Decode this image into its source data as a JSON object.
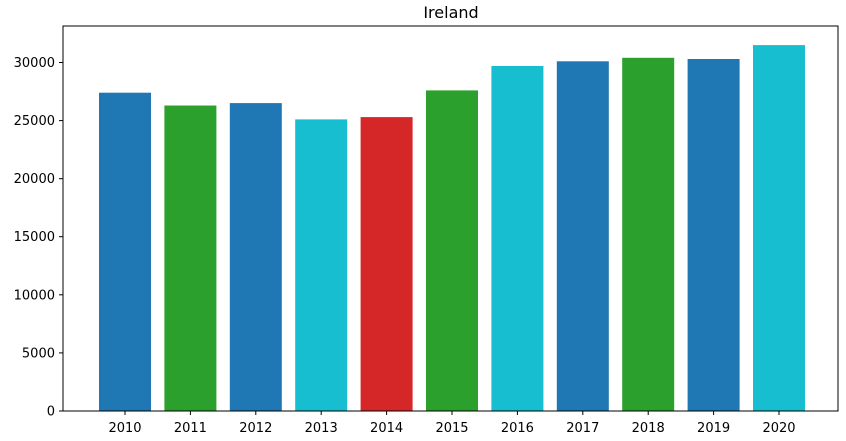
{
  "chart_data": {
    "type": "bar",
    "title": "Ireland",
    "xlabel": "",
    "ylabel": "",
    "categories": [
      "2010",
      "2011",
      "2012",
      "2013",
      "2014",
      "2015",
      "2016",
      "2017",
      "2018",
      "2019",
      "2020"
    ],
    "values": [
      27400,
      26300,
      26500,
      25100,
      25300,
      27600,
      29700,
      30100,
      30400,
      30300,
      31500
    ],
    "bar_colors": [
      "#1f77b4",
      "#2ca02c",
      "#1f77b4",
      "#17becf",
      "#d62728",
      "#2ca02c",
      "#17becf",
      "#1f77b4",
      "#2ca02c",
      "#1f77b4",
      "#17becf"
    ],
    "ylim": [
      0,
      33140
    ],
    "yticks": [
      0,
      5000,
      10000,
      15000,
      20000,
      25000,
      30000
    ],
    "grid": false,
    "legend": "none"
  }
}
